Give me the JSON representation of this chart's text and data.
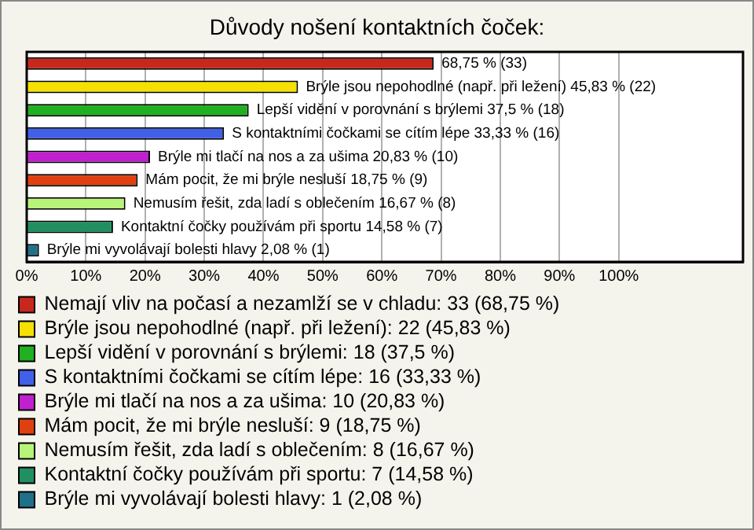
{
  "chart_data": {
    "type": "bar",
    "orientation": "horizontal",
    "stacked": true,
    "title": "Důvody nošení kontaktních čoček:",
    "categories": [
      null,
      null,
      null,
      null,
      null,
      null,
      null,
      null,
      null
    ],
    "series": [
      {
        "name": "Nemají vliv na počasí a nezamlží se v chladu: 33 (68,75 %)",
        "color": "#c8281c",
        "values": [
          68.75,
          null,
          null,
          null,
          null,
          null,
          null,
          null,
          null
        ],
        "value_labels": [
          "68,75 % (33)",
          null,
          null,
          null,
          null,
          null,
          null,
          null,
          null
        ]
      },
      {
        "name": "Brýle jsou nepohodlné (např. při ležení): 22 (45,83 %)",
        "color": "#f5e000",
        "values": [
          null,
          45.83,
          null,
          null,
          null,
          null,
          null,
          null,
          null
        ],
        "value_labels": [
          null,
          "Brýle jsou nepohodlné (např. při ležení) 45,83 % (22)",
          null,
          null,
          null,
          null,
          null,
          null,
          null
        ]
      },
      {
        "name": "Lepší vidění v porovnání s brýlemi: 18 (37,5 %)",
        "color": "#20b020",
        "values": [
          null,
          null,
          37.5,
          null,
          null,
          null,
          null,
          null,
          null
        ],
        "value_labels": [
          null,
          null,
          "Lepší vidění v porovnání s brýlemi 37,5 % (18)",
          null,
          null,
          null,
          null,
          null,
          null
        ]
      },
      {
        "name": "S kontaktními čočkami se cítím lépe: 16 (33,33 %)",
        "color": "#4060e8",
        "values": [
          null,
          null,
          null,
          33.33,
          null,
          null,
          null,
          null,
          null
        ],
        "value_labels": [
          null,
          null,
          null,
          "S kontaktními čočkami se cítím lépe 33,33 % (16)",
          null,
          null,
          null,
          null,
          null
        ]
      },
      {
        "name": "Brýle mi tlačí na nos a za ušima: 10 (20,83 %)",
        "color": "#c020d0",
        "values": [
          null,
          null,
          null,
          null,
          20.83,
          null,
          null,
          null,
          null
        ],
        "value_labels": [
          null,
          null,
          null,
          null,
          "Brýle mi tlačí na nos a za ušima 20,83 % (10)",
          null,
          null,
          null,
          null
        ]
      },
      {
        "name": "Mám pocit, že mi brýle nesluší: 9 (18,75 %)",
        "color": "#e04010",
        "values": [
          null,
          null,
          null,
          null,
          null,
          18.75,
          null,
          null,
          null
        ],
        "value_labels": [
          null,
          null,
          null,
          null,
          null,
          "Mám pocit, že mi brýle nesluší 18,75 % (9)",
          null,
          null,
          null
        ]
      },
      {
        "name": "Nemusím řešit, zda ladí s oblečením: 8 (16,67 %)",
        "color": "#b8f478",
        "values": [
          null,
          null,
          null,
          null,
          null,
          null,
          16.67,
          null,
          null
        ],
        "value_labels": [
          null,
          null,
          null,
          null,
          null,
          null,
          "Nemusím řešit, zda ladí s oblečením 16,67 % (8)",
          null,
          null
        ]
      },
      {
        "name": "Kontaktní čočky používám při sportu: 7 (14,58 %)",
        "color": "#209060",
        "values": [
          null,
          null,
          null,
          null,
          null,
          null,
          null,
          14.58,
          null
        ],
        "value_labels": [
          null,
          null,
          null,
          null,
          null,
          null,
          null,
          "Kontaktní čočky používám při sportu 14,58 % (7)",
          null
        ]
      },
      {
        "name": "Brýle mi vyvolávají bolesti hlavy: 1 (2,08 %)",
        "color": "#207088",
        "values": [
          null,
          null,
          null,
          null,
          null,
          null,
          null,
          null,
          2.08
        ],
        "value_labels": [
          null,
          null,
          null,
          null,
          null,
          null,
          null,
          null,
          "Brýle mi vyvolávají bolesti hlavy 2,08 % (1)"
        ]
      }
    ],
    "xlim": [
      0,
      121
    ],
    "xticks": [
      {
        "value": 0,
        "label": "0%"
      },
      {
        "value": 10,
        "label": "10%"
      },
      {
        "value": 20,
        "label": "20%"
      },
      {
        "value": 30,
        "label": "30%"
      },
      {
        "value": 40,
        "label": "40%"
      },
      {
        "value": 50,
        "label": "50%"
      },
      {
        "value": 60,
        "label": "60%"
      },
      {
        "value": 70,
        "label": "70%"
      },
      {
        "value": 80,
        "label": "80%"
      },
      {
        "value": 90,
        "label": "90%"
      },
      {
        "value": 100,
        "label": "100%"
      }
    ],
    "grid": "x",
    "legend": "bottom",
    "tick_labels": "x"
  }
}
